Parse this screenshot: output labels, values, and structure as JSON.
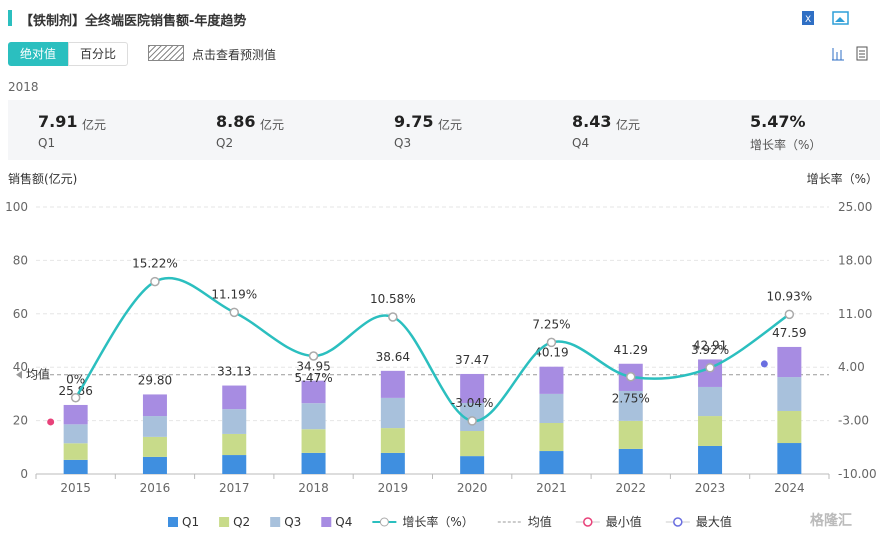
{
  "header": {
    "title": "【铁制剂】全终端医院销售额-年度趋势"
  },
  "toolbar": {
    "tabs": [
      "绝对值",
      "百分比"
    ],
    "forecast": "点击查看预测值"
  },
  "summary": {
    "year": "2018",
    "items": [
      {
        "value": "7.91",
        "unit": "亿元",
        "label": "Q1"
      },
      {
        "value": "8.86",
        "unit": "亿元",
        "label": "Q2"
      },
      {
        "value": "9.75",
        "unit": "亿元",
        "label": "Q3"
      },
      {
        "value": "8.43",
        "unit": "亿元",
        "label": "Q4"
      },
      {
        "value": "5.47%",
        "label": "增长率（%）"
      }
    ]
  },
  "chart_data": {
    "type": "bar",
    "stacked": true,
    "ylabel": "销售额(亿元)",
    "y2label": "增长率（%）",
    "categories": [
      "2015",
      "2016",
      "2017",
      "2018",
      "2019",
      "2020",
      "2021",
      "2022",
      "2023",
      "2024"
    ],
    "ylim": [
      0,
      100
    ],
    "yticks": [
      0,
      20,
      40,
      60,
      80,
      100
    ],
    "y2lim": [
      -10,
      25
    ],
    "y2ticks": [
      {
        "value": -10,
        "label": "-10.00"
      },
      {
        "value": -3,
        "label": "-3.00"
      },
      {
        "value": 4,
        "label": "4.00"
      },
      {
        "value": 11,
        "label": "11.00"
      },
      {
        "value": 18,
        "label": "18.00"
      },
      {
        "value": 25,
        "label": "25.00"
      }
    ],
    "grid": true,
    "series": [
      {
        "name": "Q1",
        "color": "#3f8fe0",
        "values": [
          5.3,
          6.4,
          7.1,
          7.91,
          7.9,
          6.7,
          8.6,
          9.4,
          10.5,
          11.6
        ]
      },
      {
        "name": "Q2",
        "color": "#c8db8a",
        "values": [
          6.2,
          7.5,
          7.9,
          8.86,
          9.3,
          9.4,
          10.5,
          10.5,
          11.2,
          12
        ]
      },
      {
        "name": "Q3",
        "color": "#a8c1dc",
        "values": [
          7.1,
          7.8,
          9.3,
          9.75,
          11.3,
          10.5,
          10.9,
          11.2,
          10.9,
          12.7
        ]
      },
      {
        "name": "Q4",
        "color": "#a78ce2",
        "values": [
          7.26,
          8.1,
          8.83,
          8.43,
          10.14,
          10.87,
          10.19,
          10.19,
          10.31,
          11.29
        ]
      },
      {
        "name": "增长率（%）",
        "type": "line",
        "axis": "y2",
        "color": "#2bbfbf",
        "values": [
          0,
          15.22,
          11.19,
          5.47,
          10.58,
          -3.04,
          7.25,
          2.75,
          3.92,
          10.93
        ],
        "value_labels": [
          "0%",
          "15.22%",
          "11.19%",
          "5.47%",
          "10.58%",
          "-3.04%",
          "7.25%",
          "2.75%",
          "3.92%",
          "10.93%"
        ]
      }
    ],
    "totals": [
      25.86,
      29.8,
      33.13,
      34.95,
      38.64,
      37.47,
      40.19,
      41.29,
      42.91,
      47.59
    ],
    "total_labels": [
      "25.86",
      "29.80",
      "33.13",
      "34.95",
      "38.64",
      "37.47",
      "40.19",
      "41.29",
      "42.91",
      "47.59"
    ],
    "average": {
      "name": "均值",
      "label": "均值",
      "value": 37.18,
      "color": "#999999"
    },
    "min": {
      "name": "最小值",
      "color": "#e8427a"
    },
    "max": {
      "name": "最大值",
      "color": "#6a6ee0"
    }
  },
  "watermark": "格隆汇"
}
